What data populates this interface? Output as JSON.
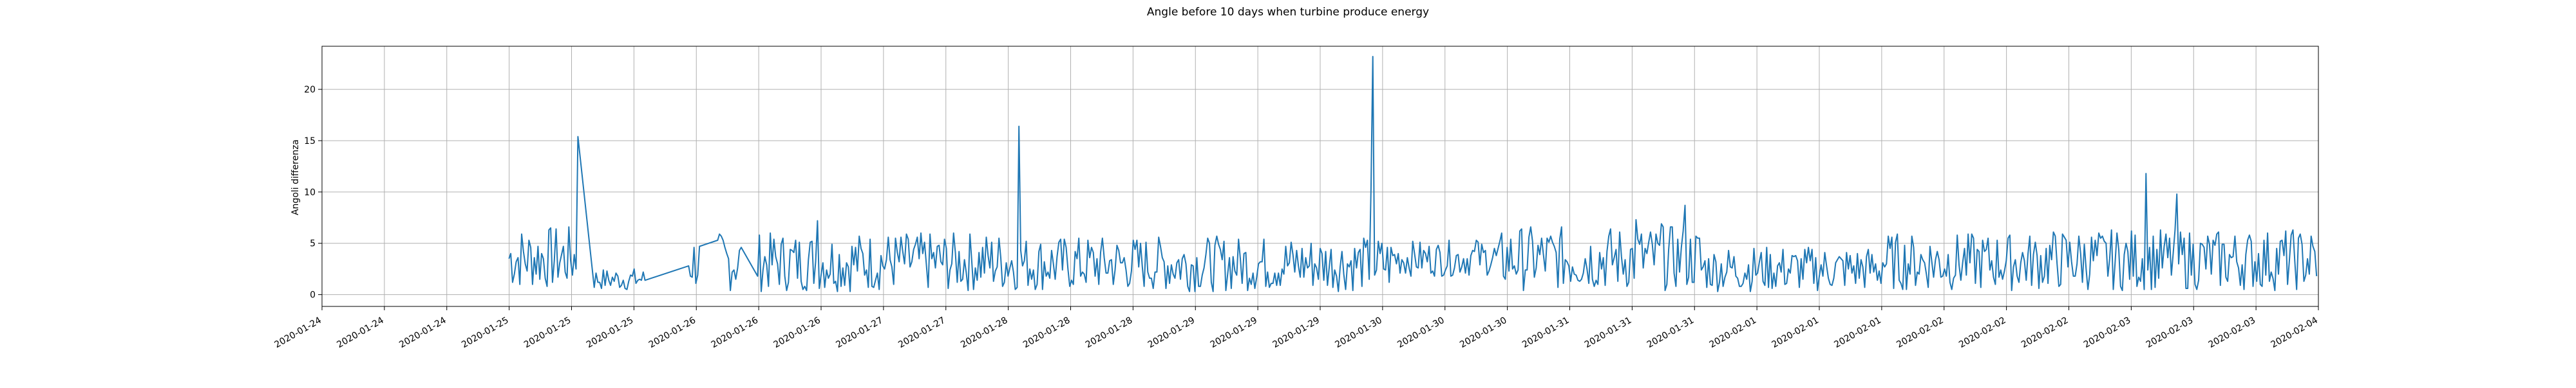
{
  "chart_data": {
    "type": "line",
    "title": "Angle before 10 days when turbine produce energy",
    "xlabel": "",
    "ylabel": "Angoli differenza",
    "x_tick_labels": [
      "2020-01-24",
      "2020-01-24",
      "2020-01-24",
      "2020-01-25",
      "2020-01-25",
      "2020-01-25",
      "2020-01-26",
      "2020-01-26",
      "2020-01-26",
      "2020-01-27",
      "2020-01-27",
      "2020-01-28",
      "2020-01-28",
      "2020-01-28",
      "2020-01-29",
      "2020-01-29",
      "2020-01-29",
      "2020-01-30",
      "2020-01-30",
      "2020-01-30",
      "2020-01-31",
      "2020-01-31",
      "2020-01-31",
      "2020-02-01",
      "2020-02-01",
      "2020-02-01",
      "2020-02-02",
      "2020-02-02",
      "2020-02-02",
      "2020-02-03",
      "2020-02-03",
      "2020-02-03",
      "2020-02-04"
    ],
    "y_ticks": [
      0,
      5,
      10,
      15,
      20
    ],
    "xlim_days": [
      0,
      11
    ],
    "ylim": [
      -1.15,
      24.2
    ],
    "grid": true,
    "line_color": "#1f77b4",
    "series": [
      {
        "x_days": [
          1.03,
          1.04,
          1.05,
          1.06,
          1.07,
          1.08,
          1.09,
          1.1,
          1.11,
          1.12,
          1.13,
          1.14,
          1.15,
          1.16,
          1.17,
          1.18,
          1.19,
          1.2,
          1.21,
          1.22,
          1.23,
          1.24,
          1.25,
          1.26,
          1.27,
          1.28,
          1.29,
          1.3,
          1.31,
          1.32,
          1.33,
          1.34,
          1.35,
          1.36,
          1.37,
          1.38,
          1.39,
          1.4,
          1.41,
          1.5,
          1.51,
          1.52,
          1.53,
          1.54,
          1.55,
          1.56,
          1.57,
          1.58,
          1.59,
          1.6,
          1.61,
          1.62,
          1.63,
          1.64,
          1.65,
          1.66,
          1.67,
          1.68,
          1.69,
          1.7,
          1.71,
          1.72,
          1.73,
          1.74,
          1.75,
          1.76,
          1.77,
          1.78,
          2.02,
          2.03,
          2.04,
          2.05,
          2.06,
          2.07,
          2.08,
          2.18,
          2.19,
          2.2,
          2.21,
          2.22,
          2.23,
          2.24,
          2.25,
          2.26,
          2.27,
          2.28,
          2.29,
          2.3,
          2.31,
          2.4,
          2.41,
          2.42,
          2.43,
          2.44,
          2.45,
          2.46,
          2.47,
          2.48,
          2.49,
          2.5,
          2.51,
          2.52,
          2.53,
          2.54,
          2.55,
          2.56,
          2.57,
          2.58,
          2.59,
          2.6,
          2.61,
          2.62,
          2.63,
          2.64,
          2.65,
          2.66,
          2.67,
          2.68,
          2.69,
          2.7,
          2.71,
          2.72,
          2.73,
          2.74,
          2.75,
          2.76,
          2.77,
          2.78,
          2.79,
          2.8,
          2.81,
          2.82,
          2.83,
          2.84,
          2.85,
          2.86,
          2.87,
          2.88,
          2.89,
          2.9,
          2.91,
          2.92,
          2.93,
          2.94,
          2.95,
          2.96,
          2.97,
          2.98,
          2.99,
          3.0,
          3.01,
          3.02,
          3.03,
          3.04,
          3.05,
          3.06,
          3.07,
          3.08,
          3.09,
          3.1,
          3.11,
          3.12,
          3.13,
          3.14,
          3.15,
          3.16,
          3.17,
          3.18,
          3.19,
          3.2,
          3.21,
          3.22,
          3.23,
          3.24,
          3.25,
          3.26,
          3.27,
          3.28,
          3.29,
          3.3,
          3.31,
          3.32,
          3.33,
          3.34,
          3.35,
          3.36,
          3.37,
          3.38,
          3.39,
          3.4,
          3.41,
          3.42,
          3.43,
          3.44,
          3.45,
          3.46,
          3.47,
          3.48,
          3.49,
          3.5,
          3.51,
          3.52,
          3.53,
          3.54,
          3.55,
          3.56,
          3.57,
          3.58,
          3.59,
          3.6,
          3.61,
          3.62,
          3.63,
          3.64,
          3.65,
          3.66,
          3.67,
          3.68,
          3.69,
          3.7,
          3.71,
          3.72,
          3.73,
          3.74,
          3.75,
          3.76,
          3.77,
          3.78,
          3.79,
          3.8,
          3.81,
          3.82,
          3.83,
          3.84,
          3.85,
          3.86,
          3.87,
          3.88,
          3.89,
          3.9,
          3.91,
          3.92,
          3.93,
          3.94,
          3.95,
          3.96,
          3.97,
          3.98,
          3.99,
          4.0,
          4.01,
          4.02,
          4.03,
          4.04,
          4.05,
          4.06,
          4.07,
          4.08,
          4.09,
          4.1,
          4.11,
          4.12,
          4.13,
          4.14,
          4.15,
          4.16,
          4.17,
          4.18,
          4.19,
          4.2,
          4.21,
          4.22,
          4.23,
          4.24,
          4.25,
          4.26,
          4.27,
          4.28,
          4.29,
          4.3,
          4.31,
          4.32,
          4.33,
          4.34,
          4.35,
          4.36,
          4.37,
          4.38,
          4.39,
          4.4,
          4.41,
          4.42,
          4.43,
          4.44,
          4.45,
          4.46,
          4.47,
          4.48,
          4.49,
          4.5,
          4.51,
          4.52,
          4.53,
          4.54,
          4.55,
          4.56,
          4.57,
          4.58,
          4.59,
          4.6,
          4.61,
          4.62,
          4.63,
          4.64,
          4.65,
          4.66,
          4.67,
          4.68,
          4.69,
          4.7,
          4.71,
          4.72,
          4.73,
          4.74,
          4.75,
          4.76,
          4.77,
          4.78,
          4.79,
          4.8,
          4.81,
          4.82,
          4.83,
          4.84,
          4.85,
          4.86,
          4.87,
          4.88,
          4.89,
          4.9,
          4.91,
          4.92,
          4.93,
          4.94,
          4.95,
          4.96,
          4.97,
          4.98,
          4.99,
          5.0,
          5.01,
          5.02,
          5.03,
          5.04,
          5.05,
          5.06,
          5.07,
          5.08,
          5.09,
          5.1,
          5.11,
          5.12,
          5.13,
          5.14,
          5.15,
          5.16,
          5.17,
          5.18,
          5.19,
          5.2,
          5.21,
          5.22,
          5.23,
          5.24,
          5.25,
          5.26,
          5.27,
          5.28,
          5.29,
          5.3,
          5.31,
          5.32,
          5.33,
          5.34,
          5.35,
          5.36,
          5.37,
          5.38,
          5.39,
          5.4,
          5.41,
          5.42,
          5.43,
          5.44,
          5.45,
          5.46,
          5.47,
          5.48,
          5.49,
          5.5,
          5.51,
          5.52,
          5.53,
          5.54,
          5.55,
          5.56,
          5.57,
          5.58,
          5.59,
          5.6,
          5.61,
          5.62,
          5.63,
          5.64,
          5.65,
          5.66,
          5.67,
          5.68,
          5.69,
          5.7,
          5.71,
          5.72,
          5.73,
          5.74,
          5.75,
          5.76,
          5.77,
          5.78,
          5.79,
          5.8,
          5.81,
          5.82,
          5.83,
          5.84,
          5.85,
          5.86,
          5.87,
          5.88,
          5.89,
          5.9,
          5.91,
          5.92,
          5.93,
          5.94,
          5.95,
          5.96,
          5.97,
          5.98,
          5.99,
          6.0,
          6.01,
          6.02,
          6.03,
          6.04,
          6.05,
          6.06,
          6.07,
          6.08,
          6.09,
          6.1,
          6.11,
          6.12,
          6.13,
          6.14,
          6.15,
          6.16,
          6.17,
          6.18,
          6.19,
          6.2,
          6.21,
          6.22,
          6.23,
          6.24,
          6.25,
          6.26,
          6.27,
          6.28,
          6.29,
          6.3,
          6.31,
          6.32,
          6.33,
          6.34,
          6.35,
          6.36,
          6.37,
          6.38,
          6.39,
          6.4,
          6.41,
          6.42,
          6.43,
          6.44,
          6.45,
          6.46,
          6.47,
          6.48,
          6.49,
          6.5,
          6.51,
          6.52,
          6.53,
          6.54,
          6.55,
          6.56,
          6.57,
          6.58,
          6.59,
          6.6,
          6.61,
          6.62,
          6.63,
          6.64,
          6.65,
          6.66,
          6.67,
          6.68,
          6.69,
          6.7,
          6.71,
          6.72,
          6.73,
          6.74,
          6.75,
          6.76,
          6.77,
          6.78,
          6.79,
          6.8,
          6.81,
          6.82,
          6.83,
          6.84,
          6.85,
          6.86,
          6.87,
          6.88,
          6.89,
          6.9,
          6.91,
          6.92,
          6.93,
          6.94,
          6.95,
          6.96,
          6.97,
          6.98,
          6.99,
          7.0,
          7.01,
          7.02,
          7.03,
          7.04,
          7.05,
          7.06,
          7.07,
          7.08,
          7.09,
          7.1,
          7.11,
          7.12,
          7.13,
          7.14,
          7.15,
          7.16,
          7.17,
          7.18,
          7.19,
          7.2,
          7.21,
          7.22,
          7.23,
          7.24,
          7.25,
          7.26,
          7.27,
          7.28,
          7.29,
          7.3,
          7.31,
          7.32,
          7.33,
          7.34,
          7.35,
          7.36,
          7.37,
          7.38,
          7.39,
          7.4,
          7.41,
          7.42,
          7.43,
          7.44,
          7.45,
          7.46,
          7.47,
          7.48,
          7.49,
          7.5,
          7.51,
          7.52,
          7.53,
          7.54,
          7.55,
          7.56,
          7.57,
          7.58,
          7.59,
          7.6,
          7.61,
          7.62,
          7.63,
          7.64,
          7.65,
          7.66,
          7.67,
          7.68,
          7.69,
          7.7,
          7.71,
          7.72,
          7.73,
          7.74,
          7.75,
          7.76,
          7.77,
          7.78,
          7.79,
          7.8,
          7.81,
          7.82,
          7.83,
          7.84,
          7.85,
          7.86,
          7.87,
          7.88,
          7.89,
          7.9,
          7.91,
          7.92,
          7.93,
          7.94,
          7.95,
          7.96,
          7.97,
          7.98,
          7.99,
          8.0,
          8.01,
          8.02,
          8.03,
          8.04,
          8.05,
          8.06,
          8.07,
          8.08,
          8.09,
          8.1,
          8.11,
          8.12,
          8.13,
          8.14,
          8.15,
          8.16,
          8.17,
          8.18,
          8.19,
          8.2,
          8.21,
          8.22,
          8.23,
          8.24,
          8.25,
          8.26,
          8.27,
          8.28,
          8.29,
          8.3,
          8.31,
          8.32,
          8.33,
          8.34,
          8.35,
          8.36,
          8.37,
          8.38,
          8.39,
          8.4,
          8.41,
          8.42,
          8.43,
          8.44,
          8.45,
          8.46,
          8.47,
          8.48,
          8.49,
          8.5,
          8.51,
          8.52,
          8.53,
          8.54,
          8.55,
          8.56,
          8.57,
          8.58,
          8.59,
          8.6,
          8.61,
          8.62,
          8.63,
          8.64,
          8.65,
          8.66,
          8.67,
          8.68,
          8.69,
          8.7,
          8.71,
          8.72,
          8.73,
          8.74,
          8.75,
          8.76,
          8.77,
          8.78,
          8.79,
          8.8,
          8.81,
          8.82,
          8.83,
          8.84,
          8.85,
          8.86,
          8.87,
          8.88,
          8.89,
          8.9,
          8.91,
          8.92,
          8.93,
          8.94,
          8.95,
          8.96,
          8.97,
          8.98,
          8.99,
          9.0,
          9.01,
          9.02,
          9.03,
          9.04,
          9.05,
          9.06,
          9.07,
          9.08,
          9.09,
          9.1,
          9.11,
          9.12,
          9.13,
          9.14,
          9.15,
          9.16,
          9.17,
          9.18,
          9.19,
          9.2,
          9.21,
          9.22,
          9.23,
          9.24,
          9.25,
          9.26,
          9.27,
          9.28,
          9.29,
          9.3,
          9.31,
          9.32,
          9.33,
          9.34,
          9.35,
          9.36,
          9.37,
          9.38,
          9.39,
          9.4,
          9.41,
          9.42,
          9.43,
          9.44,
          9.45,
          9.46,
          9.47,
          9.48,
          9.49,
          9.5,
          9.51,
          9.52,
          9.53,
          9.54,
          9.55,
          9.56,
          9.57,
          9.58,
          9.59,
          9.6,
          9.61,
          9.62,
          9.63,
          9.64,
          9.65,
          9.66,
          9.67,
          9.68,
          9.69,
          9.7,
          9.71,
          9.72,
          9.73,
          9.74,
          9.75,
          9.76,
          9.77,
          9.78,
          9.79,
          9.8,
          9.81,
          9.82,
          9.83,
          9.84,
          9.85,
          9.86,
          9.87,
          9.88,
          9.89,
          9.9,
          9.91,
          9.92,
          9.93,
          9.94,
          9.95,
          9.96,
          9.97,
          9.98,
          9.99,
          10.0,
          10.01,
          10.02,
          10.03,
          10.04,
          10.05,
          10.06,
          10.07,
          10.08,
          10.09,
          10.1,
          10.11,
          10.12,
          10.13,
          10.14,
          10.15,
          10.16,
          10.17,
          10.18,
          10.19,
          10.2,
          10.21,
          10.22,
          10.23,
          10.24,
          10.25,
          10.26,
          10.27,
          10.28,
          10.29,
          10.3,
          10.31,
          10.32,
          10.33,
          10.34,
          10.35,
          10.36,
          10.37,
          10.38,
          10.39,
          10.4,
          10.41,
          10.42,
          10.43,
          10.44,
          10.45,
          10.46,
          10.47,
          10.48,
          10.49,
          10.5,
          10.51,
          10.52,
          10.53,
          10.54,
          10.55,
          10.56,
          10.57,
          10.58,
          10.59,
          10.6,
          10.61,
          10.62,
          10.63,
          10.64,
          10.65,
          10.66,
          10.67,
          10.68,
          10.69,
          10.7,
          10.71,
          10.72,
          10.73,
          10.74,
          10.75,
          10.76,
          10.77,
          10.78,
          10.79,
          10.8,
          10.81,
          10.82,
          10.83,
          10.84,
          10.85,
          10.86,
          10.87,
          10.88,
          10.89,
          10.9,
          10.91,
          10.92,
          10.93,
          10.94,
          10.95,
          10.96,
          10.97,
          10.98,
          10.99
        ],
        "y": []
      }
    ]
  }
}
